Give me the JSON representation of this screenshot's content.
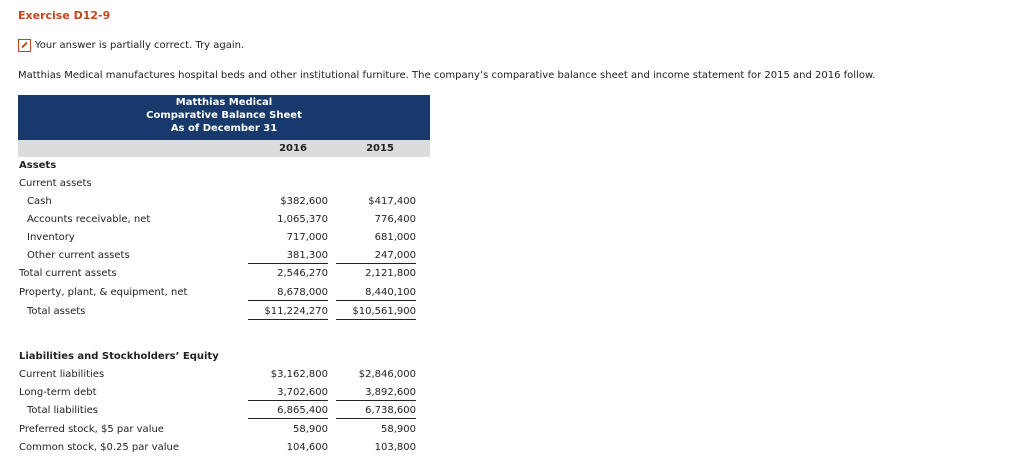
{
  "header": {
    "title": "Exercise D12-9"
  },
  "feedback": "Your answer is partially correct.  Try again.",
  "intro": "Matthias Medical manufactures hospital beds and other institutional furniture. The company’s comparative balance sheet and income statement for 2015 and 2016 follow.",
  "table": {
    "title": [
      "Matthias Medical",
      "Comparative Balance Sheet",
      "As of December 31"
    ],
    "columns": [
      "2016",
      "2015"
    ],
    "rows": [
      [
        "Assets"
      ],
      [
        "Current assets"
      ],
      [
        "Cash",
        "$382,600",
        "$417,400"
      ],
      [
        "Accounts receivable, net",
        "1,065,370",
        "776,400"
      ],
      [
        "Inventory",
        "717,000",
        "681,000"
      ],
      [
        "Other current assets",
        "381,300",
        "247,000"
      ],
      [
        "Total current assets",
        "2,546,270",
        "2,121,800"
      ],
      [
        "Property, plant, & equipment, net",
        "8,678,000",
        "8,440,100"
      ],
      [
        "Total assets",
        "$11,224,270",
        "$10,561,900"
      ],
      [
        "Liabilities and Stockholders’ Equity"
      ],
      [
        "Current liabilities",
        "$3,162,800",
        "$2,846,000"
      ],
      [
        "Long-term debt",
        "3,702,600",
        "3,892,600"
      ],
      [
        "Total liabilities",
        "6,865,400",
        "6,738,600"
      ],
      [
        "Preferred stock, $5 par value",
        "58,900",
        "58,900"
      ],
      [
        "Common stock, $0.25 par value",
        "104,600",
        "103,800"
      ]
    ]
  }
}
